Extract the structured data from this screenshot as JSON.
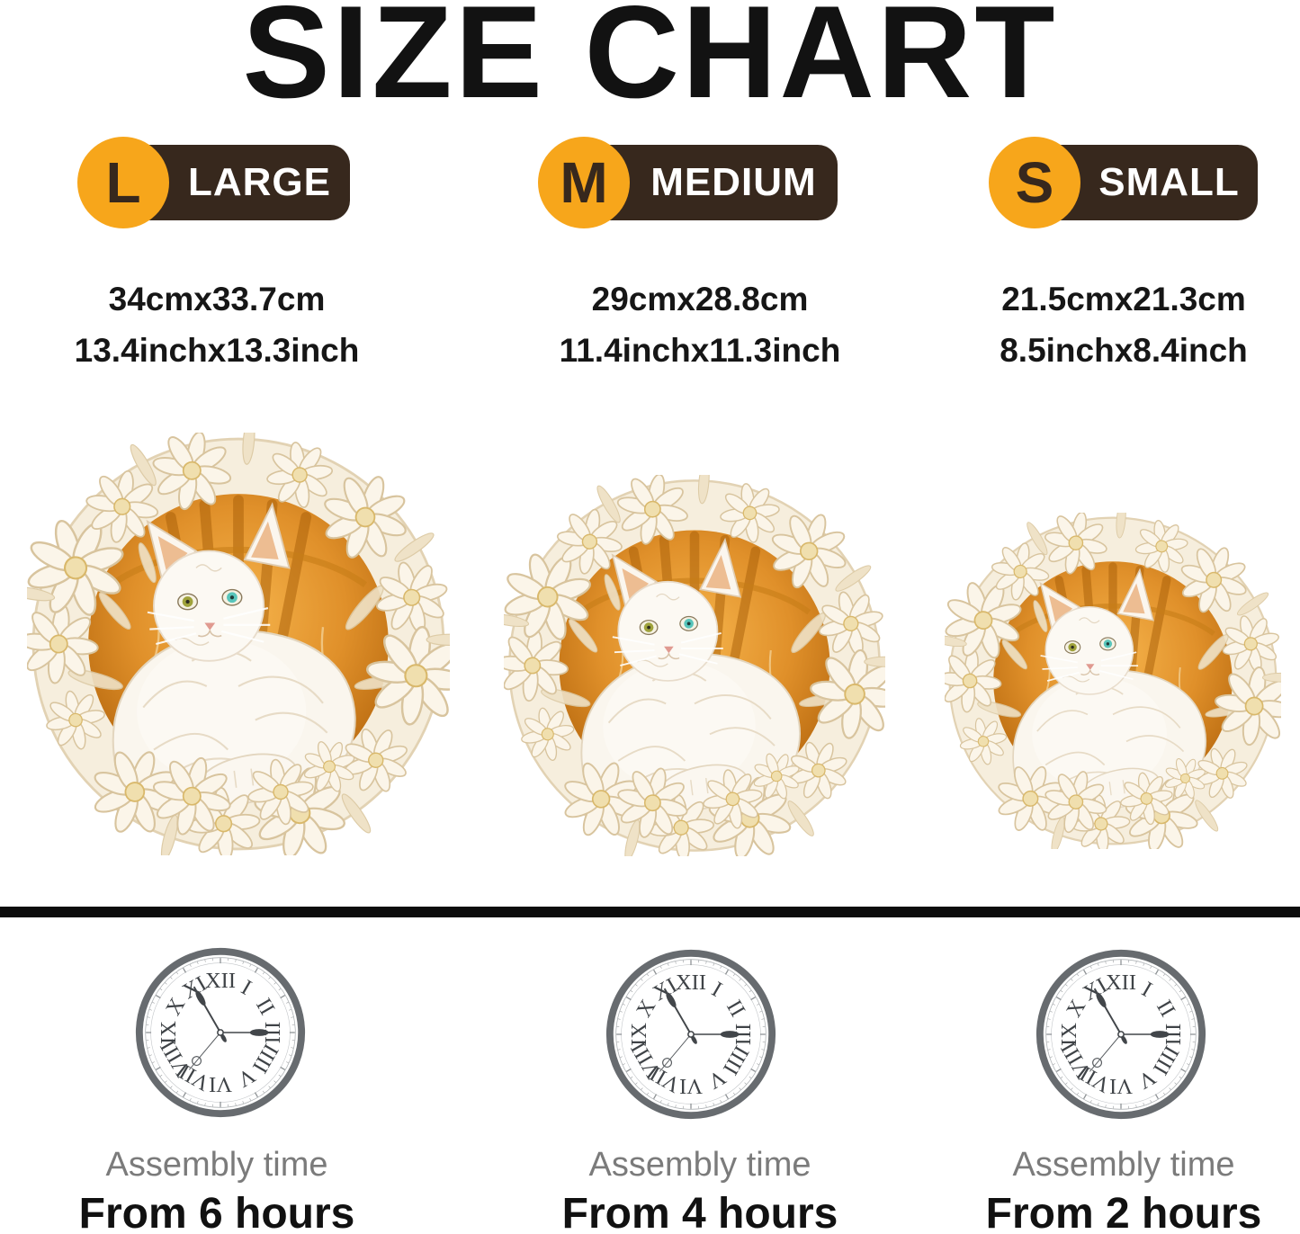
{
  "title": "SIZE CHART",
  "colors": {
    "accent_orange": "#F7A61B",
    "badge_brown": "#37281D",
    "divider_black": "#0d0d0d",
    "assembly_gray": "#7b7b7b",
    "puzzle_amber": "#D98A1E",
    "clock_gray": "#676b6f"
  },
  "puzzle_image": "round-3d-carved-white-cat-with-flowers-wooden-puzzle",
  "columns": [
    {
      "id": "large",
      "letter": "L",
      "label": "LARGE",
      "size_cm": "34cmx33.7cm",
      "size_inch": "13.4inchx13.3inch",
      "assembly_label": "Assembly time",
      "assembly_time": "From 6 hours"
    },
    {
      "id": "medium",
      "letter": "M",
      "label": "MEDIUM",
      "size_cm": "29cmx28.8cm",
      "size_inch": "11.4inchx11.3inch",
      "assembly_label": "Assembly time",
      "assembly_time": "From 4 hours"
    },
    {
      "id": "small",
      "letter": "S",
      "label": "SMALL",
      "size_cm": "21.5cmx21.3cm",
      "size_inch": "8.5inchx8.4inch",
      "assembly_label": "Assembly time",
      "assembly_time": "From 2 hours"
    }
  ],
  "clock": {
    "numerals": [
      "XII",
      "I",
      "II",
      "III",
      "IIII",
      "V",
      "VI",
      "VII",
      "VIII",
      "IX",
      "X",
      "XI"
    ]
  }
}
